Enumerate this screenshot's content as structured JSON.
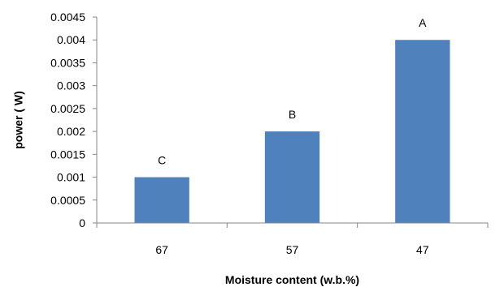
{
  "chart_data": {
    "type": "bar",
    "title": "",
    "xlabel": "Moisture content (w.b.%)",
    "ylabel": "power ( W)",
    "categories": [
      "67",
      "57",
      "47"
    ],
    "values": [
      0.001,
      0.002,
      0.004
    ],
    "data_labels": [
      "C",
      "B",
      "A"
    ],
    "ylim": [
      0,
      0.0045
    ],
    "y_ticks": [
      "0",
      "0.0005",
      "0.001",
      "0.0015",
      "0.002",
      "0.0025",
      "0.003",
      "0.0035",
      "0.004",
      "0.0045"
    ],
    "grid": false,
    "legend": "none",
    "bar_color": "#4F81BD",
    "axis_color": "#868686"
  }
}
